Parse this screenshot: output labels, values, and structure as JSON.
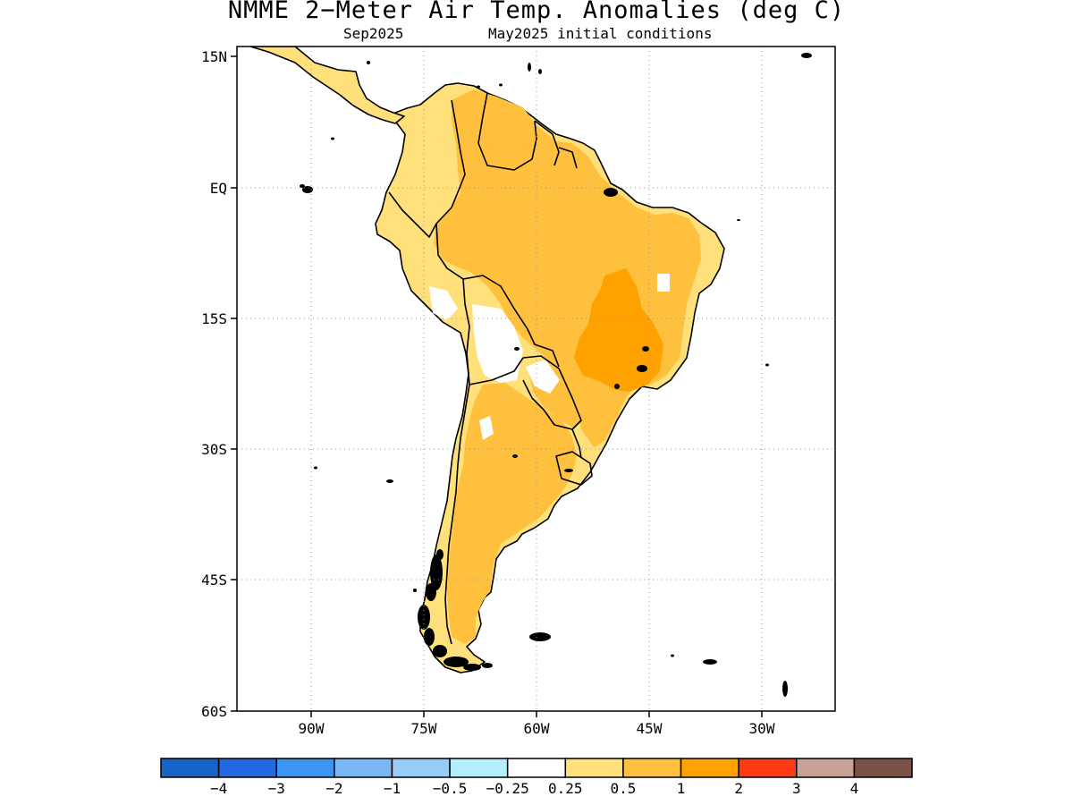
{
  "title": "NMME 2−Meter Air Temp. Anomalies (deg C)",
  "subtitle_left": "Sep2025",
  "subtitle_right": "May2025 initial conditions",
  "y_ticks": [
    "15N",
    "EQ",
    "15S",
    "30S",
    "45S",
    "60S"
  ],
  "x_ticks": [
    "90W",
    "75W",
    "60W",
    "45W",
    "30W"
  ],
  "colorbar": {
    "colors": [
      "#1565c8",
      "#2168e2",
      "#3e94f2",
      "#78b6f5",
      "#98ccf8",
      "#b4eefc",
      "#ffffff",
      "#ffe07a",
      "#ffc03e",
      "#ffa200",
      "#ff3a12",
      "#c9a095",
      "#7b5046"
    ],
    "labels": [
      "−4",
      "−3",
      "−2",
      "−1",
      "−0.5",
      "−0.25",
      "0.25",
      "0.5",
      "1",
      "2",
      "3",
      "4"
    ]
  },
  "colors": {
    "land_outline": "#000000",
    "grid": "#9a9a9a",
    "anomaly_0_25_to_0_5": "#ffe07a",
    "anomaly_0_5_to_1": "#ffc03e",
    "anomaly_1_to_2": "#ffa200",
    "anomaly_neutral": "#ffffff"
  }
}
